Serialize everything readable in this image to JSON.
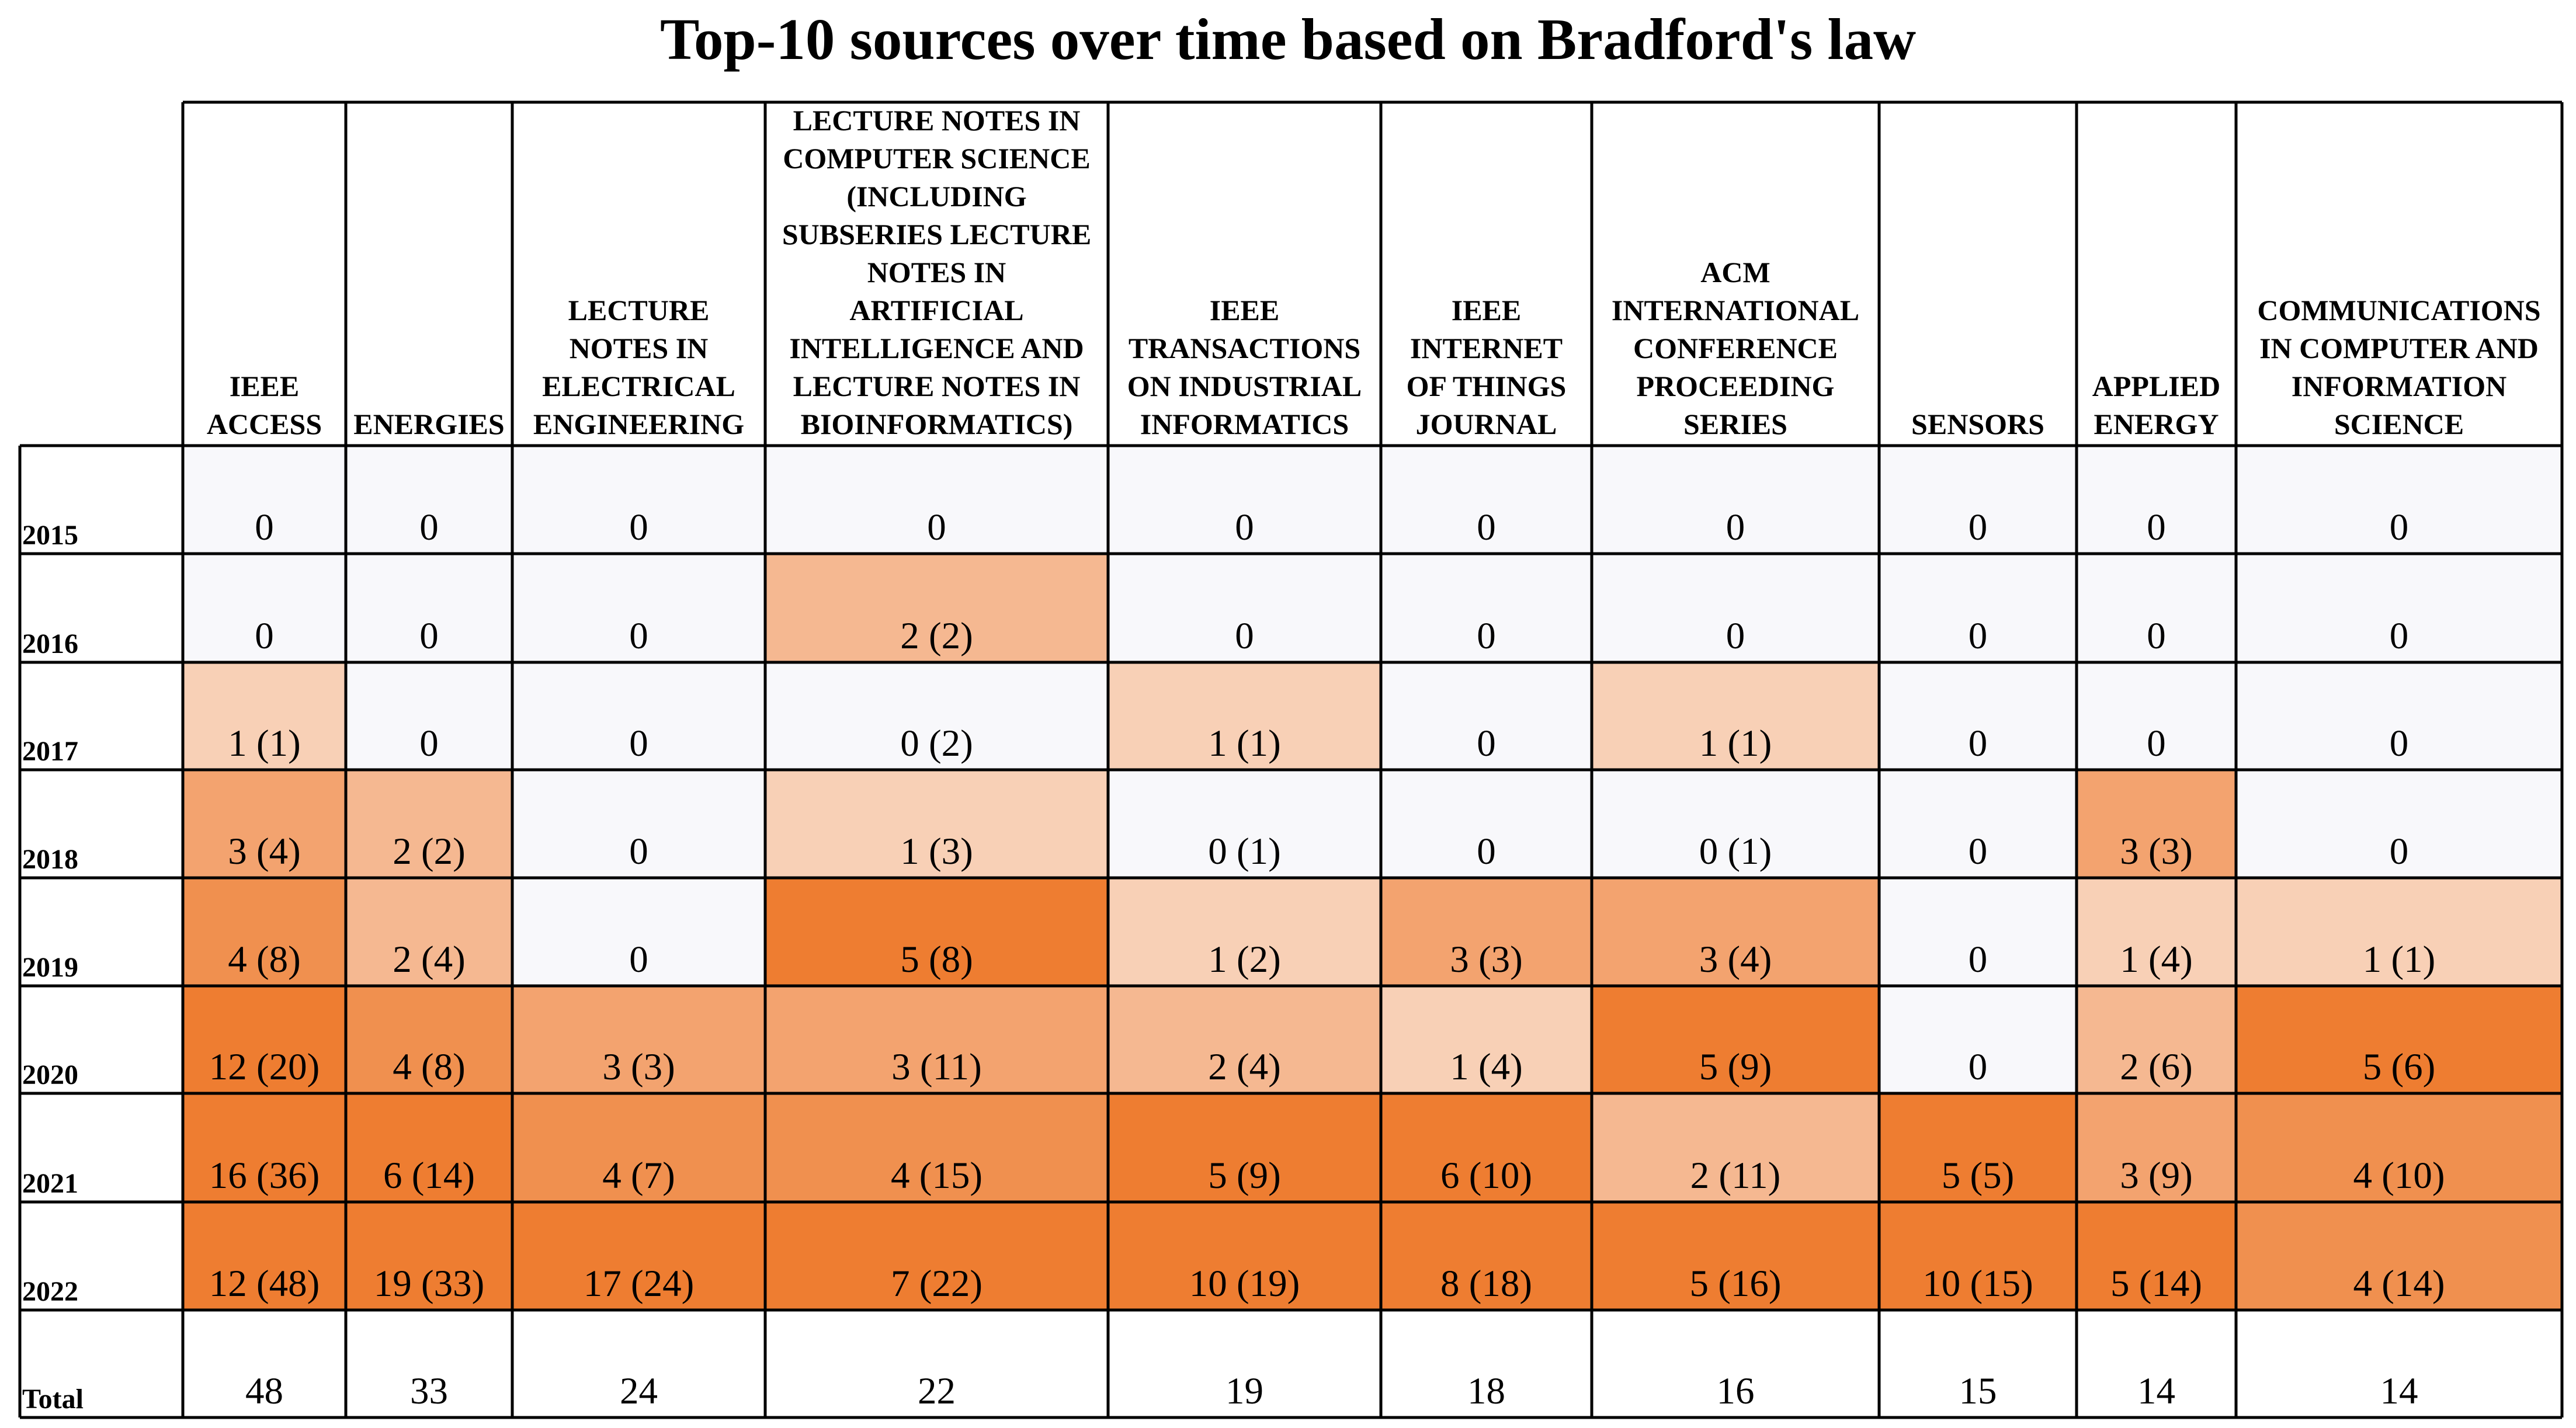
{
  "title": "Top-10 sources over time based on Bradford's law",
  "chart_data": {
    "type": "heatmap",
    "title": "Top-10 sources over time based on Bradford's law",
    "columns": [
      {
        "header_lines": [
          "IEEE",
          "ACCESS"
        ]
      },
      {
        "header_lines": [
          "ENERGIES"
        ]
      },
      {
        "header_lines": [
          "LECTURE",
          "NOTES IN",
          "ELECTRICAL",
          "ENGINEERING"
        ]
      },
      {
        "header_lines": [
          "LECTURE NOTES IN",
          "COMPUTER SCIENCE",
          "(INCLUDING",
          "SUBSERIES LECTURE",
          "NOTES IN",
          "ARTIFICIAL",
          "INTELLIGENCE AND",
          "LECTURE NOTES IN",
          "BIOINFORMATICS)"
        ]
      },
      {
        "header_lines": [
          "IEEE",
          "TRANSACTIONS",
          "ON INDUSTRIAL",
          "INFORMATICS"
        ]
      },
      {
        "header_lines": [
          "IEEE",
          "INTERNET",
          "OF THINGS",
          "JOURNAL"
        ]
      },
      {
        "header_lines": [
          "ACM",
          "INTERNATIONAL",
          "CONFERENCE",
          "PROCEEDING",
          "SERIES"
        ]
      },
      {
        "header_lines": [
          "SENSORS"
        ]
      },
      {
        "header_lines": [
          "APPLIED",
          "ENERGY"
        ]
      },
      {
        "header_lines": [
          "COMMUNICATIONS",
          "IN COMPUTER AND",
          "INFORMATION",
          "SCIENCE"
        ]
      }
    ],
    "rows": [
      {
        "label": "2015",
        "cells": [
          "0",
          "0",
          "0",
          "0",
          "0",
          "0",
          "0",
          "0",
          "0",
          "0"
        ]
      },
      {
        "label": "2016",
        "cells": [
          "0",
          "0",
          "0",
          "2 (2)",
          "0",
          "0",
          "0",
          "0",
          "0",
          "0"
        ]
      },
      {
        "label": "2017",
        "cells": [
          "1 (1)",
          "0",
          "0",
          "0 (2)",
          "1 (1)",
          "0",
          "1 (1)",
          "0",
          "0",
          "0"
        ]
      },
      {
        "label": "2018",
        "cells": [
          "3 (4)",
          "2 (2)",
          "0",
          "1 (3)",
          "0 (1)",
          "0",
          "0 (1)",
          "0",
          "3 (3)",
          "0"
        ]
      },
      {
        "label": "2019",
        "cells": [
          "4 (8)",
          "2 (4)",
          "0",
          "5 (8)",
          "1 (2)",
          "3 (3)",
          "3 (4)",
          "0",
          "1 (4)",
          "1 (1)"
        ]
      },
      {
        "label": "2020",
        "cells": [
          "12 (20)",
          "4 (8)",
          "3 (3)",
          "3 (11)",
          "2 (4)",
          "1 (4)",
          "5 (9)",
          "0",
          "2 (6)",
          "5 (6)"
        ]
      },
      {
        "label": "2021",
        "cells": [
          "16 (36)",
          "6 (14)",
          "4 (7)",
          "4 (15)",
          "5 (9)",
          "6 (10)",
          "2 (11)",
          "5 (5)",
          "3 (9)",
          "4 (10)"
        ]
      },
      {
        "label": "2022",
        "cells": [
          "12 (48)",
          "19 (33)",
          "17 (24)",
          "7 (22)",
          "10 (19)",
          "8 (18)",
          "5 (16)",
          "10 (15)",
          "5 (14)",
          "4 (14)"
        ]
      }
    ],
    "total_row": {
      "label": "Total",
      "cells": [
        "48",
        "33",
        "24",
        "22",
        "19",
        "18",
        "16",
        "15",
        "14",
        "14"
      ]
    },
    "colors": {
      "zero": "#f8f8fb",
      "scale_low": "#fcefe9",
      "scale_high": "#ee7d31",
      "grid": "#000000"
    }
  }
}
